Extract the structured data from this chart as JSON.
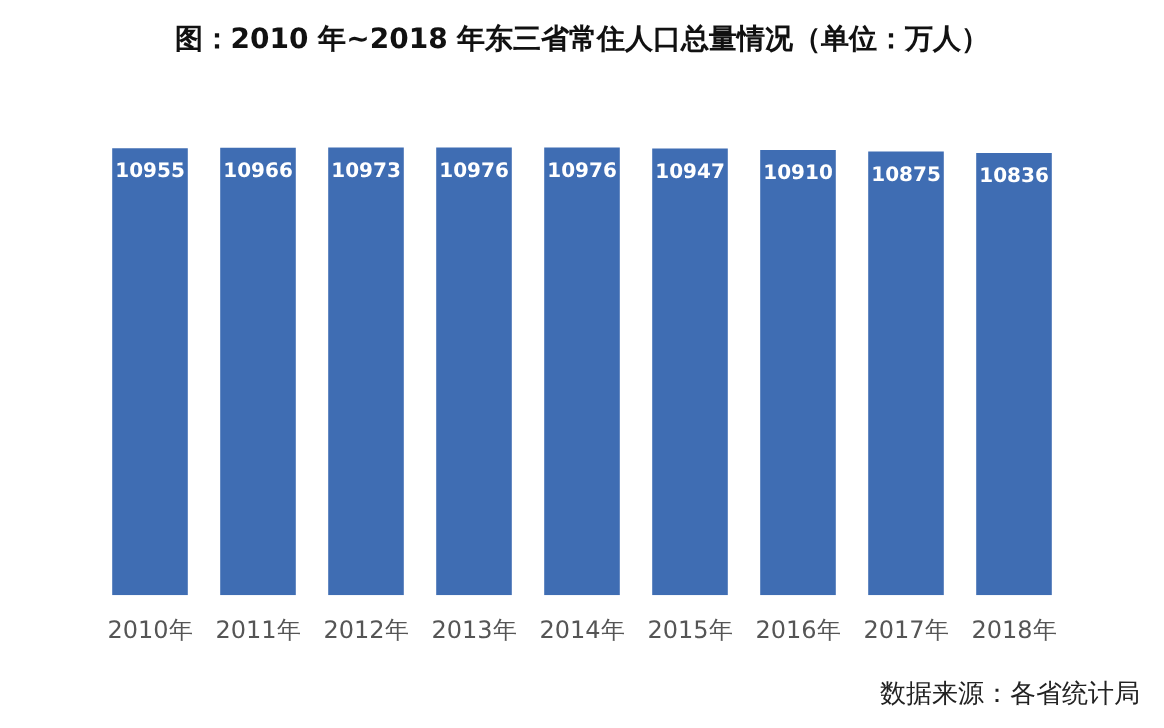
{
  "chart_data": {
    "type": "bar",
    "title": "图：2010 年~2018 年东三省常住人口总量情况（单位：万人）",
    "categories": [
      "2010年",
      "2011年",
      "2012年",
      "2013年",
      "2014年",
      "2015年",
      "2016年",
      "2017年",
      "2018年"
    ],
    "values": [
      10955,
      10966,
      10973,
      10976,
      10976,
      10947,
      10910,
      10875,
      10836
    ],
    "color": "#3f6db3",
    "tick_labels": "x",
    "data_labels": true,
    "annotations": [
      "数据来源：各省统计局"
    ]
  }
}
